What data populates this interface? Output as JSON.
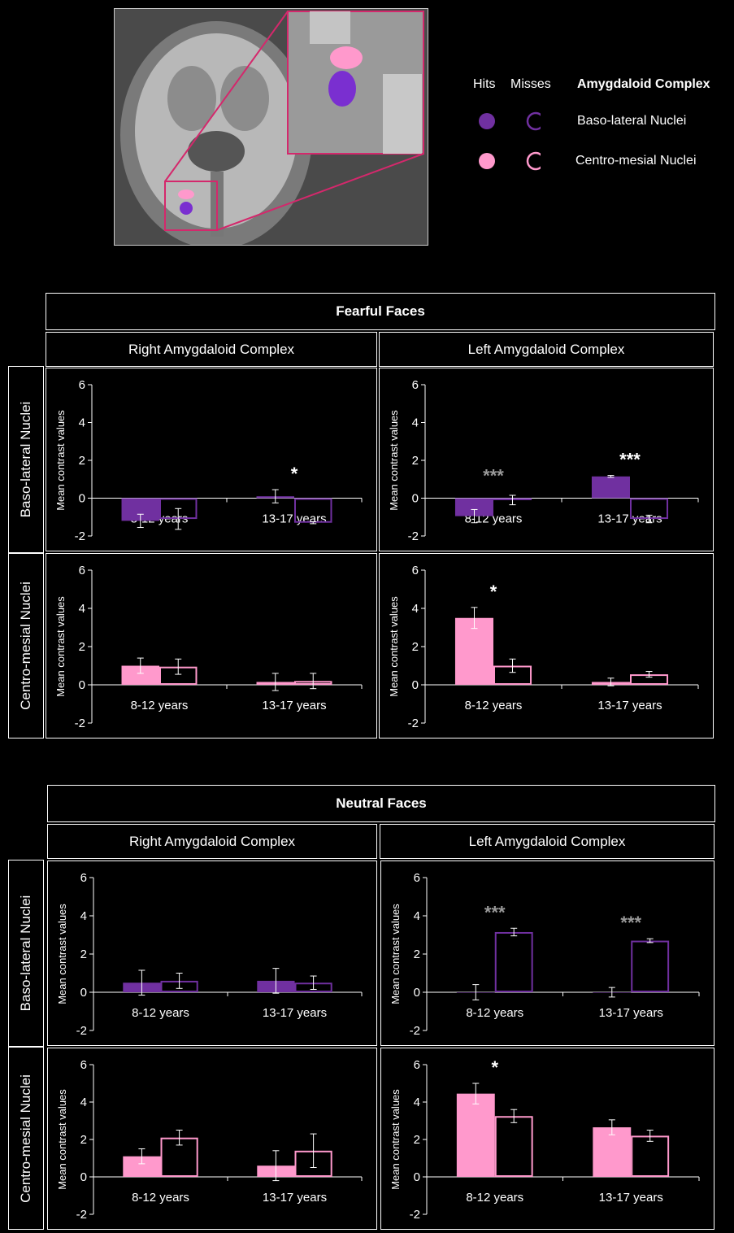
{
  "legend": {
    "hits": "Hits",
    "misses": "Misses",
    "title": "Amygdaloid Complex",
    "items": [
      {
        "label": "Baso-lateral Nuclei",
        "color": "#7030a0"
      },
      {
        "label": "Centro-mesial Nuclei",
        "color": "#ff99cc"
      }
    ]
  },
  "sections": [
    {
      "title": "Fearful Faces",
      "columns": [
        "Right Amygdaloid Complex",
        "Left Amygdaloid Complex"
      ],
      "rows": [
        "Baso-lateral Nuclei",
        "Centro-mesial Nuclei"
      ]
    },
    {
      "title": "Neutral Faces",
      "columns": [
        "Right Amygdaloid Complex",
        "Left Amygdaloid Complex"
      ],
      "rows": [
        "Baso-lateral Nuclei",
        "Centro-mesial Nuclei"
      ]
    }
  ],
  "chart_data": [
    {
      "type": "bar",
      "panel": "Fearful Faces / Baso-lateral Nuclei / Right Amygdaloid Complex",
      "ylabel": "Mean contrast values",
      "ylim": [
        -2,
        6
      ],
      "yticks": [
        -2,
        0,
        2,
        4,
        6
      ],
      "categories": [
        "8-12 years",
        "13-17 years"
      ],
      "color": "#7030a0",
      "series": [
        {
          "name": "Hits",
          "values": [
            -1.2,
            0.1
          ],
          "errors": [
            0.35,
            0.35
          ]
        },
        {
          "name": "Misses",
          "values": [
            -1.1,
            -1.3
          ],
          "errors": [
            0.55,
            0.05
          ]
        }
      ],
      "annotations": [
        {
          "text": "*",
          "category": "13-17 years",
          "color": "#ffffff"
        }
      ]
    },
    {
      "type": "bar",
      "panel": "Fearful Faces / Baso-lateral Nuclei / Left Amygdaloid Complex",
      "ylabel": "Mean contrast values",
      "ylim": [
        -2,
        6
      ],
      "yticks": [
        -2,
        0,
        2,
        4,
        6
      ],
      "categories": [
        "8-12 years",
        "13-17 years"
      ],
      "color": "#7030a0",
      "series": [
        {
          "name": "Hits",
          "values": [
            -0.95,
            1.15
          ],
          "errors": [
            0.35,
            0.05
          ]
        },
        {
          "name": "Misses",
          "values": [
            -0.1,
            -1.1
          ],
          "errors": [
            0.25,
            0.2
          ]
        }
      ],
      "annotations": [
        {
          "text": "***",
          "category": "8-12 years",
          "color": "#999999"
        },
        {
          "text": "***",
          "category": "13-17 years",
          "color": "#ffffff"
        }
      ]
    },
    {
      "type": "bar",
      "panel": "Fearful Faces / Centro-mesial Nuclei / Right Amygdaloid Complex",
      "ylabel": "Mean contrast values",
      "ylim": [
        -2,
        6
      ],
      "yticks": [
        -2,
        0,
        2,
        4,
        6
      ],
      "categories": [
        "8-12 years",
        "13-17 years"
      ],
      "color": "#ff99cc",
      "series": [
        {
          "name": "Hits",
          "values": [
            1.0,
            0.15
          ],
          "errors": [
            0.4,
            0.45
          ]
        },
        {
          "name": "Misses",
          "values": [
            0.95,
            0.2
          ],
          "errors": [
            0.4,
            0.4
          ]
        }
      ],
      "annotations": []
    },
    {
      "type": "bar",
      "panel": "Fearful Faces / Centro-mesial Nuclei / Left Amygdaloid Complex",
      "ylabel": "Mean contrast values",
      "ylim": [
        -2,
        6
      ],
      "yticks": [
        -2,
        0,
        2,
        4,
        6
      ],
      "categories": [
        "8-12 years",
        "13-17 years"
      ],
      "color": "#ff99cc",
      "series": [
        {
          "name": "Hits",
          "values": [
            3.5,
            0.15
          ],
          "errors": [
            0.55,
            0.2
          ]
        },
        {
          "name": "Misses",
          "values": [
            1.0,
            0.55
          ],
          "errors": [
            0.35,
            0.15
          ]
        }
      ],
      "annotations": [
        {
          "text": "*",
          "category": "8-12 years",
          "color": "#ffffff"
        }
      ]
    },
    {
      "type": "bar",
      "panel": "Neutral Faces / Baso-lateral Nuclei / Right Amygdaloid Complex",
      "ylabel": "Mean contrast values",
      "ylim": [
        -2,
        6
      ],
      "yticks": [
        -2,
        0,
        2,
        4,
        6
      ],
      "categories": [
        "8-12 years",
        "13-17 years"
      ],
      "color": "#7030a0",
      "series": [
        {
          "name": "Hits",
          "values": [
            0.5,
            0.6
          ],
          "errors": [
            0.65,
            0.65
          ]
        },
        {
          "name": "Misses",
          "values": [
            0.6,
            0.5
          ],
          "errors": [
            0.4,
            0.35
          ]
        }
      ],
      "annotations": []
    },
    {
      "type": "bar",
      "panel": "Neutral Faces / Baso-lateral Nuclei / Left Amygdaloid Complex",
      "ylabel": "Mean contrast values",
      "ylim": [
        -2,
        6
      ],
      "yticks": [
        -2,
        0,
        2,
        4,
        6
      ],
      "categories": [
        "8-12 years",
        "13-17 years"
      ],
      "color": "#7030a0",
      "series": [
        {
          "name": "Hits",
          "values": [
            0.0,
            0.0
          ],
          "errors": [
            0.4,
            0.25
          ]
        },
        {
          "name": "Misses",
          "values": [
            3.15,
            2.7
          ],
          "errors": [
            0.2,
            0.1
          ]
        }
      ],
      "annotations": [
        {
          "text": "***",
          "category": "8-12 years",
          "color": "#999999"
        },
        {
          "text": "***",
          "category": "13-17 years",
          "color": "#999999"
        }
      ]
    },
    {
      "type": "bar",
      "panel": "Neutral Faces / Centro-mesial Nuclei / Right Amygdaloid Complex",
      "ylabel": "Mean contrast values",
      "ylim": [
        -2,
        6
      ],
      "yticks": [
        -2,
        0,
        2,
        4,
        6
      ],
      "categories": [
        "8-12 years",
        "13-17 years"
      ],
      "color": "#ff99cc",
      "series": [
        {
          "name": "Hits",
          "values": [
            1.1,
            0.6
          ],
          "errors": [
            0.4,
            0.8
          ]
        },
        {
          "name": "Misses",
          "values": [
            2.1,
            1.4
          ],
          "errors": [
            0.4,
            0.9
          ]
        }
      ],
      "annotations": []
    },
    {
      "type": "bar",
      "panel": "Neutral Faces / Centro-mesial Nuclei / Left Amygdaloid Complex",
      "ylabel": "Mean contrast values",
      "ylim": [
        -2,
        6
      ],
      "yticks": [
        -2,
        0,
        2,
        4,
        6
      ],
      "categories": [
        "8-12 years",
        "13-17 years"
      ],
      "color": "#ff99cc",
      "series": [
        {
          "name": "Hits",
          "values": [
            4.45,
            2.65
          ],
          "errors": [
            0.55,
            0.4
          ]
        },
        {
          "name": "Misses",
          "values": [
            3.25,
            2.2
          ],
          "errors": [
            0.35,
            0.3
          ]
        }
      ],
      "annotations": [
        {
          "text": "*",
          "category": "8-12 years",
          "color": "#ffffff"
        }
      ]
    }
  ]
}
